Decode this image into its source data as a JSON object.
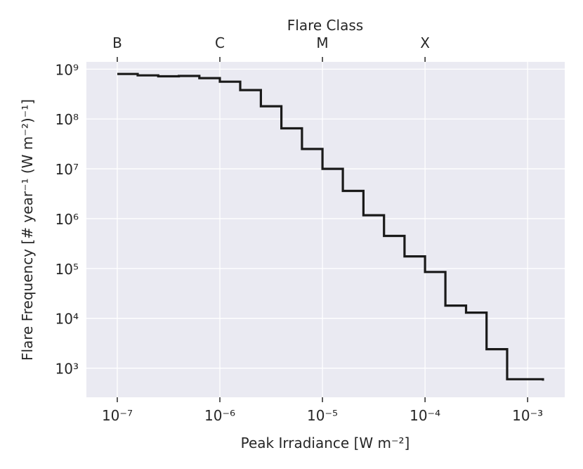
{
  "chart_data": {
    "type": "line",
    "drawstyle": "steps",
    "xscale": "log",
    "yscale": "log",
    "xlabel": "Peak Irradiance [W m⁻²]",
    "ylabel": "Flare Frequency [# year⁻¹ (W m⁻²)⁻¹]",
    "top_xlabel": "Flare Class",
    "xlim": [
      5e-08,
      0.0023
    ],
    "ylim": [
      260,
      1400000000.0
    ],
    "grid": true,
    "background_color": "#eaeaf2",
    "line_color": "#1a1a1a",
    "x_ticks": [
      {
        "value": 1e-07,
        "label": "10⁻⁷"
      },
      {
        "value": 1e-06,
        "label": "10⁻⁶"
      },
      {
        "value": 1e-05,
        "label": "10⁻⁵"
      },
      {
        "value": 0.0001,
        "label": "10⁻⁴"
      },
      {
        "value": 0.001,
        "label": "10⁻³"
      }
    ],
    "y_ticks": [
      {
        "value": 1000.0,
        "label": "10³"
      },
      {
        "value": 10000.0,
        "label": "10⁴"
      },
      {
        "value": 100000.0,
        "label": "10⁵"
      },
      {
        "value": 1000000.0,
        "label": "10⁶"
      },
      {
        "value": 10000000.0,
        "label": "10⁷"
      },
      {
        "value": 100000000.0,
        "label": "10⁸"
      },
      {
        "value": 1000000000.0,
        "label": "10⁹"
      }
    ],
    "top_ticks": [
      {
        "value": 1e-07,
        "label": "B"
      },
      {
        "value": 1e-06,
        "label": "C"
      },
      {
        "value": 1e-05,
        "label": "M"
      },
      {
        "value": 0.0001,
        "label": "X"
      }
    ],
    "series": [
      {
        "x": [
          1e-07,
          1.58e-07,
          2.51e-07,
          3.98e-07,
          6.31e-07,
          1e-06,
          1.58e-06,
          2.51e-06,
          3.98e-06,
          6.31e-06,
          1e-05,
          1.58e-05,
          2.51e-05,
          3.98e-05,
          6.31e-05,
          0.0001,
          0.000158,
          0.000251,
          0.000398,
          0.000631,
          0.00141
        ],
        "y": [
          800000000.0,
          750000000.0,
          720000000.0,
          730000000.0,
          660000000.0,
          560000000.0,
          380000000.0,
          180000000.0,
          65000000.0,
          25000000.0,
          10000000.0,
          3600000.0,
          1170000.0,
          450000.0,
          175000.0,
          85000.0,
          18000.0,
          13000.0,
          2400.0,
          600,
          560
        ]
      }
    ]
  }
}
